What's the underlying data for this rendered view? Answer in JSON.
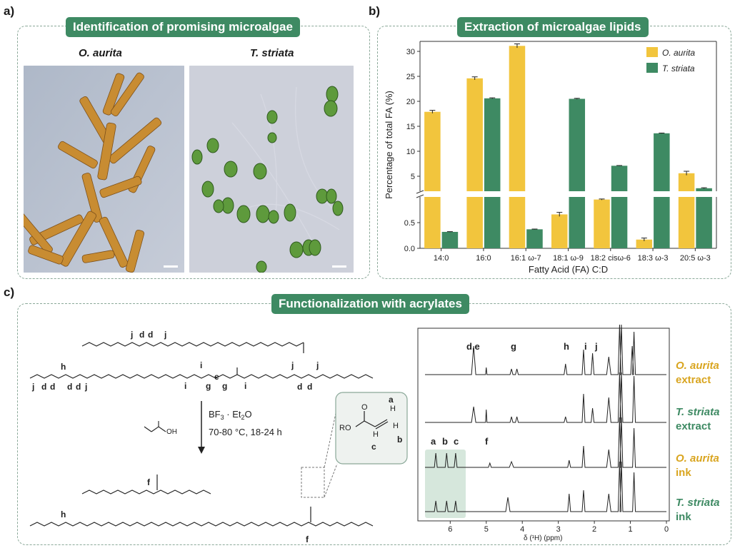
{
  "panels": {
    "a": {
      "letter": "a)",
      "title": "Identification of promising microalgae",
      "species_left": "O. aurita",
      "species_right": "T. striata"
    },
    "b": {
      "letter": "b)",
      "title": "Extraction of microalgae lipids"
    },
    "c": {
      "letter": "c)",
      "title": "Functionalization with acrylates"
    }
  },
  "colors": {
    "aurita": "#f2c53d",
    "striata": "#3e8a63",
    "title_bg": "#3e8a63",
    "aurita_text": "#d9a520",
    "striata_text": "#3e8a63"
  },
  "chart_data": {
    "type": "bar",
    "title": "Extraction of microalgae lipids",
    "xlabel": "Fatty Acid (FA) C:D",
    "ylabel": "Percentage of total FA (%)",
    "categories": [
      "14:0",
      "16:0",
      "16:1 ω-7",
      "18:1 ω-9",
      "18:2 cisω-6",
      "18:3 ω-3",
      "20:5 ω-3"
    ],
    "series": [
      {
        "name": "O. aurita",
        "values": [
          17.9,
          24.6,
          31.1,
          0.66,
          0.95,
          0.17,
          5.6
        ],
        "errors": [
          0.3,
          0.3,
          0.4,
          0.04,
          0.01,
          0.03,
          0.4
        ]
      },
      {
        "name": "T. striata",
        "values": [
          0.32,
          20.6,
          0.37,
          20.5,
          7.1,
          13.6,
          2.6
        ],
        "errors": [
          0.005,
          0.1,
          0.005,
          0.1,
          0.05,
          0.05,
          0.1
        ]
      }
    ],
    "y_axis_break": {
      "lower_range": [
        0,
        1.0
      ],
      "upper_range": [
        2,
        32
      ]
    },
    "lower_ticks": [
      "0.0",
      "0.5"
    ],
    "upper_ticks": [
      "5",
      "10",
      "15",
      "20",
      "25",
      "30"
    ],
    "legend_position": "top-right"
  },
  "reaction": {
    "reagent_line1": "BF",
    "reagent_sub1": "3",
    "reagent_mid": " · Et",
    "reagent_sub2": "2",
    "reagent_end": "O",
    "conditions": "70-80 °C, 18-24 h",
    "acrylic_acid_label": "OH",
    "triglyceride_labels": {
      "j1": "j",
      "d1": "d",
      "d2": "d",
      "h": "h",
      "d3": "d",
      "d4": "d",
      "j2": "j",
      "j3": "j",
      "d5": "d",
      "d6": "d",
      "j4": "j",
      "i1": "i",
      "i2": "i",
      "i3": "i",
      "g1": "g",
      "e": "e",
      "g2": "g",
      "j5": "j",
      "d7": "d",
      "d8": "d",
      "j6": "j"
    },
    "product_labels": {
      "f1": "f",
      "f2": "f",
      "h": "h"
    },
    "inset_labels": {
      "a": "a",
      "b": "b",
      "c": "c",
      "ro": "RO",
      "o": "O",
      "h1": "H",
      "h2": "H",
      "h3": "H"
    }
  },
  "nmr": {
    "xlabel": "δ (¹H) (ppm)",
    "ticks": [
      "6",
      "5",
      "4",
      "3",
      "2",
      "1",
      "0"
    ],
    "peak_labels_top": [
      "d,e",
      "g",
      "h",
      "i",
      "j"
    ],
    "peak_labels_bottom": [
      "a",
      "b",
      "c",
      "f"
    ],
    "spectra": [
      {
        "species": "O. aurita",
        "type": "extract"
      },
      {
        "species": "T. striata",
        "type": "extract"
      },
      {
        "species": "O. aurita",
        "type": "ink"
      },
      {
        "species": "T. striata",
        "type": "ink"
      }
    ]
  }
}
